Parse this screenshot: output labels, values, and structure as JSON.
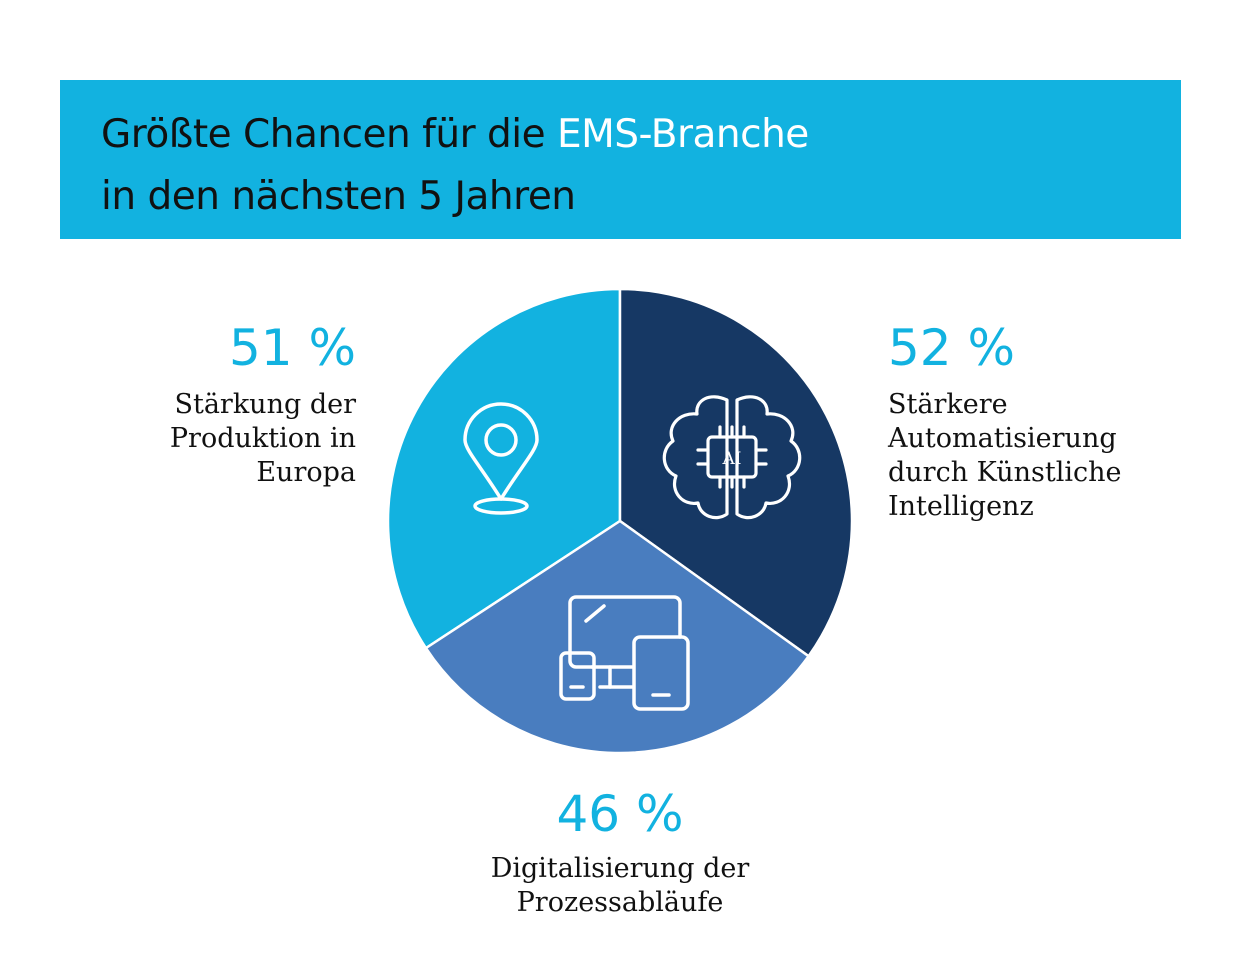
{
  "title": {
    "part1": "Größte Chancen für die ",
    "accent": "EMS-Branche",
    "line2": "in den nächsten 5 Jahren"
  },
  "colors": {
    "banner": "#12b2e0",
    "accent_text": "#ffffff",
    "percent": "#12b2e0",
    "slice_europe": "#12b2e0",
    "slice_ai": "#163864",
    "slice_digital": "#497dbf"
  },
  "chart_data": {
    "type": "pie",
    "title": "Größte Chancen für die EMS-Branche in den nächsten 5 Jahren",
    "slices": [
      {
        "label": "Stärkung der Produktion in Europa",
        "value": 51,
        "display": "51 %",
        "label_lines": "Stärkung der\nProduktion in\nEuropa",
        "icon": "location-pin-icon",
        "color": "#12b2e0"
      },
      {
        "label": "Stärkere Automatisierung durch Künstliche Intelligenz",
        "value": 52,
        "display": "52 %",
        "label_lines": "Stärkere\nAutomatisierung\ndurch Künstliche\nIntelligenz",
        "icon": "ai-brain-icon",
        "icon_text": "AI",
        "color": "#163864"
      },
      {
        "label": "Digitalisierung der Prozessabläufe",
        "value": 46,
        "display": "46 %",
        "label_lines": "Digitalisierung der\nProzessabläufe",
        "icon": "devices-icon",
        "color": "#497dbf"
      }
    ]
  }
}
